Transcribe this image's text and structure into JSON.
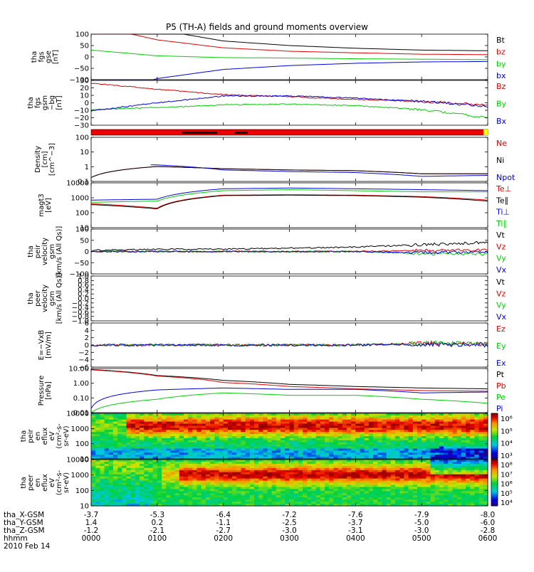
{
  "title": "P5 (TH-A) fields and ground moments overview",
  "colors": {
    "black": "#000000",
    "red": "#e00000",
    "green": "#00d000",
    "blue": "#0000e0"
  },
  "panels": [
    {
      "id": "fgs-gse",
      "ylabel": [
        "tha",
        "fgs",
        "gse",
        "[nT]"
      ],
      "ticks": [
        "100",
        "50",
        "0",
        "−50",
        "−100"
      ],
      "legend": [
        {
          "label": "Bt",
          "color": "black"
        },
        {
          "label": "bz",
          "color": "red"
        },
        {
          "label": "by",
          "color": "green"
        },
        {
          "label": "bx",
          "color": "blue"
        }
      ]
    },
    {
      "id": "fgs-gsm",
      "ylabel": [
        "tha",
        "fgs",
        "gsm",
        "−bg",
        "[nT]"
      ],
      "ticks": [
        "30",
        "20",
        "10",
        "0",
        "−10",
        "−20",
        "−30"
      ],
      "legend": [
        {
          "label": "Bz",
          "color": "red"
        },
        {
          "label": "By",
          "color": "green"
        },
        {
          "label": "Bx",
          "color": "blue"
        }
      ]
    },
    {
      "id": "density",
      "ylabel": [
        "Density",
        "[cm]",
        "[cm^−3]"
      ],
      "ticks": [
        "100",
        "10",
        "1",
        "0.1"
      ],
      "legend": [
        {
          "label": "Ne",
          "color": "red"
        },
        {
          "label": "Ni",
          "color": "black"
        },
        {
          "label": "Npot",
          "color": "blue"
        }
      ]
    },
    {
      "id": "temp",
      "ylabel": [
        "magt3",
        "[eV]"
      ],
      "ticks": [
        "10000",
        "1000",
        "100",
        "10"
      ],
      "legend": [
        {
          "label": "Te⊥",
          "color": "red"
        },
        {
          "label": "Te∥",
          "color": "black"
        },
        {
          "label": "Ti⊥",
          "color": "blue"
        },
        {
          "label": "Ti∥",
          "color": "green"
        }
      ]
    },
    {
      "id": "peir-vel",
      "ylabel": [
        "tha",
        "peir",
        "velocity",
        "gsm",
        "[km/s (All Qs)]"
      ],
      "ticks": [
        "100",
        "50",
        "0",
        "−50",
        "−100"
      ],
      "legend": [
        {
          "label": "Vt",
          "color": "black"
        },
        {
          "label": "Vz",
          "color": "red"
        },
        {
          "label": "Vy",
          "color": "green"
        },
        {
          "label": "Vx",
          "color": "blue"
        }
      ]
    },
    {
      "id": "peer-vel",
      "ylabel": [
        "tha",
        "peer",
        "velocity",
        "gsm",
        "[km/s (All Qs)]"
      ],
      "ticks": [
        "1.0",
        "0.8",
        "0.6",
        "0.4",
        "0.2",
        "0.0",
        "−0.2",
        "−0.4",
        "−0.6",
        "−0.8",
        "−1.0"
      ],
      "legend": [
        {
          "label": "Vt",
          "color": "black"
        },
        {
          "label": "Vz",
          "color": "red"
        },
        {
          "label": "Vy",
          "color": "green"
        },
        {
          "label": "Vx",
          "color": "blue"
        }
      ]
    },
    {
      "id": "efield",
      "ylabel": [
        "E=−VxB",
        "[mV/m]"
      ],
      "ticks": [
        "6",
        "4",
        "2",
        "0",
        "−2",
        "−4",
        "−6"
      ],
      "legend": [
        {
          "label": "Ez",
          "color": "red"
        },
        {
          "label": "Ey",
          "color": "green"
        },
        {
          "label": "Ex",
          "color": "blue"
        }
      ]
    },
    {
      "id": "pressure",
      "ylabel": [
        "Pressure",
        "[nPa]"
      ],
      "ticks": [
        "10.00",
        "1.00",
        "0.10",
        "0.01"
      ],
      "legend": [
        {
          "label": "Pt",
          "color": "black"
        },
        {
          "label": "Pb",
          "color": "red"
        },
        {
          "label": "Pe",
          "color": "green"
        },
        {
          "label": "Pi",
          "color": "blue"
        }
      ]
    },
    {
      "id": "peir-spec",
      "ylabel": [
        "tha",
        "peir",
        "en",
        "eflux",
        "eV",
        "(cm²-s-",
        "sr-eV)"
      ],
      "ticks": [
        "10000",
        "1000",
        "100",
        "10"
      ],
      "colorbar": [
        "10⁶",
        "10⁵",
        "10⁴",
        "10³"
      ]
    },
    {
      "id": "peer-spec",
      "ylabel": [
        "tha",
        "peer",
        "en",
        "eflux",
        "eV",
        "(cm²-s-",
        "sr-eV)"
      ],
      "ticks": [
        "10000",
        "1000",
        "100",
        "10"
      ],
      "colorbar": [
        "10⁸",
        "10⁷",
        "10⁶",
        "10⁵",
        "10⁴"
      ]
    }
  ],
  "orbit": {
    "row_labels": [
      "tha_X-GSM",
      "tha_Y-GSM",
      "tha_Z-GSM",
      "hhmm",
      "2010 Feb 14"
    ],
    "columns": [
      {
        "x": "-3.7",
        "y": "1.4",
        "z": "-1.2",
        "t": "0000"
      },
      {
        "x": "-5.3",
        "y": "0.2",
        "z": "-2.1",
        "t": "0100"
      },
      {
        "x": "-6.4",
        "y": "-1.1",
        "z": "-2.7",
        "t": "0200"
      },
      {
        "x": "-7.2",
        "y": "-2.5",
        "z": "-3.0",
        "t": "0300"
      },
      {
        "x": "-7.6",
        "y": "-3.7",
        "z": "-3.1",
        "t": "0400"
      },
      {
        "x": "-7.9",
        "y": "-5.0",
        "z": "-3.0",
        "t": "0500"
      },
      {
        "x": "-8.0",
        "y": "-6.0",
        "z": "-2.8",
        "t": "0600"
      }
    ]
  },
  "chart_data": {
    "type": "line",
    "title": "P5 (TH-A) fields and ground moments overview",
    "x": [
      "0000",
      "0100",
      "0200",
      "0300",
      "0400",
      "0500",
      "0600"
    ],
    "xlabel": "hhmm",
    "series": [
      {
        "name": "Bt",
        "panel": "fgs-gse",
        "values": [
          195,
          120,
          70,
          50,
          38,
          30,
          27
        ]
      },
      {
        "name": "bz",
        "panel": "fgs-gse",
        "values": [
          140,
          75,
          40,
          25,
          18,
          12,
          10
        ]
      },
      {
        "name": "by",
        "panel": "fgs-gse",
        "values": [
          30,
          5,
          -3,
          -5,
          -8,
          -10,
          -12
        ]
      },
      {
        "name": "bx",
        "panel": "fgs-gse",
        "values": [
          -180,
          -95,
          -55,
          -38,
          -28,
          -22,
          -20
        ]
      },
      {
        "name": "Bz",
        "panel": "fgs-gsm",
        "values": [
          29,
          20,
          12,
          9,
          5,
          2,
          -3
        ]
      },
      {
        "name": "By",
        "panel": "fgs-gsm",
        "values": [
          -10,
          -7,
          -3,
          -2,
          -4,
          -10,
          -22
        ]
      },
      {
        "name": "Bx",
        "panel": "fgs-gsm",
        "values": [
          -12,
          0,
          10,
          10,
          7,
          2,
          -5
        ]
      },
      {
        "name": "Ne",
        "panel": "density",
        "values": [
          0.2,
          1.5,
          1.0,
          0.8,
          0.7,
          0.4,
          0.4
        ]
      },
      {
        "name": "Ni",
        "panel": "density",
        "values": [
          0.2,
          1.5,
          1.0,
          0.8,
          0.7,
          0.4,
          0.4
        ]
      },
      {
        "name": "Npot",
        "panel": "density",
        "values": [
          null,
          2.0,
          0.8,
          0.6,
          0.5,
          0.25,
          0.3
        ]
      },
      {
        "name": "Te⊥",
        "panel": "temp",
        "values": [
          400,
          200,
          1500,
          1600,
          1500,
          1200,
          700
        ]
      },
      {
        "name": "Te∥",
        "panel": "temp",
        "values": [
          350,
          180,
          1400,
          1500,
          1400,
          1100,
          600
        ]
      },
      {
        "name": "Ti⊥",
        "panel": "temp",
        "values": [
          700,
          800,
          4000,
          4500,
          4000,
          3500,
          3000
        ]
      },
      {
        "name": "Ti∥",
        "panel": "temp",
        "values": [
          500,
          600,
          3000,
          3500,
          3000,
          2500,
          2500
        ]
      },
      {
        "name": "Vt",
        "panel": "peir-vel",
        "values": [
          5,
          10,
          10,
          15,
          20,
          30,
          40
        ]
      },
      {
        "name": "Vz",
        "panel": "peir-vel",
        "values": [
          0,
          0,
          0,
          0,
          0,
          5,
          5
        ]
      },
      {
        "name": "Vy",
        "panel": "peir-vel",
        "values": [
          0,
          0,
          0,
          0,
          0,
          -10,
          -10
        ]
      },
      {
        "name": "Vx",
        "panel": "peir-vel",
        "values": [
          0,
          0,
          0,
          0,
          0,
          -5,
          0
        ]
      },
      {
        "name": "Ez",
        "panel": "efield",
        "values": [
          0,
          0,
          0,
          0,
          0,
          0.5,
          0.3
        ]
      },
      {
        "name": "Ey",
        "panel": "efield",
        "values": [
          0,
          0,
          0,
          0,
          0,
          0.5,
          0.3
        ]
      },
      {
        "name": "Ex",
        "panel": "efield",
        "values": [
          0,
          0,
          0,
          0,
          0,
          0.2,
          0.1
        ]
      },
      {
        "name": "Pt",
        "panel": "pressure",
        "values": [
          17,
          6,
          2.6,
          1.3,
          0.9,
          0.7,
          0.6
        ]
      },
      {
        "name": "Pb",
        "panel": "pressure",
        "values": [
          16,
          5.5,
          1.8,
          0.9,
          0.6,
          0.45,
          0.4
        ]
      },
      {
        "name": "Pe",
        "panel": "pressure",
        "values": [
          0.01,
          0.1,
          0.3,
          0.2,
          0.2,
          0.1,
          0.05
        ]
      },
      {
        "name": "Pi",
        "panel": "pressure",
        "values": [
          0.02,
          0.5,
          0.7,
          0.55,
          0.55,
          0.3,
          0.35
        ]
      }
    ]
  }
}
